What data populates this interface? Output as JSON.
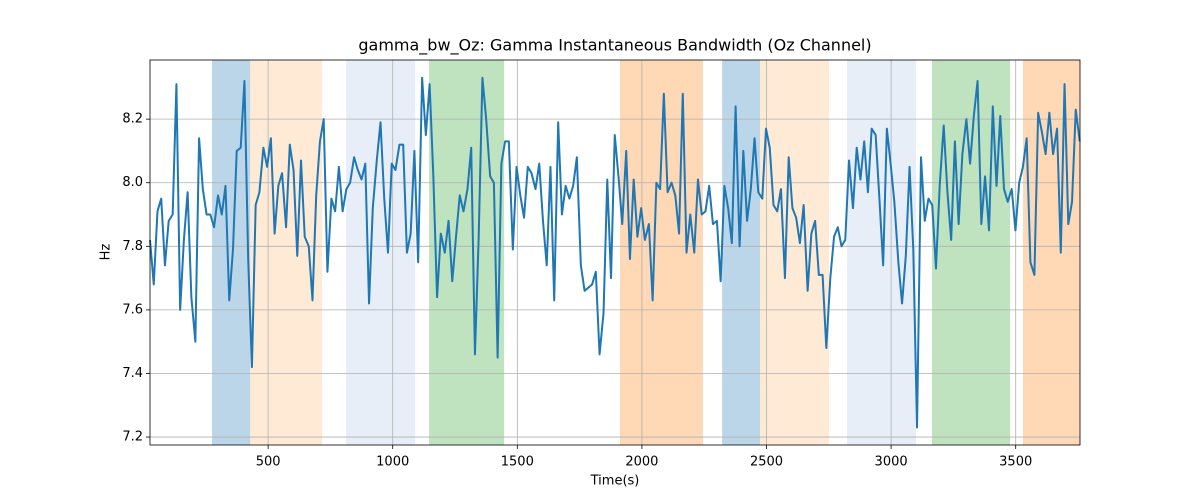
{
  "chart_data": {
    "type": "line",
    "title": "gamma_bw_Oz: Gamma Instantaneous Bandwidth (Oz Channel)",
    "xlabel": "Time(s)",
    "ylabel": "Hz",
    "xlim": [
      26,
      3758
    ],
    "ylim": [
      7.175,
      8.386
    ],
    "xticks": [
      500,
      1000,
      1500,
      2000,
      2500,
      3000,
      3500
    ],
    "yticks": [
      7.2,
      7.4,
      7.6,
      7.8,
      {
        "value": 8,
        "label": "8.0"
      },
      8.2
    ],
    "grid": true,
    "spans": [
      {
        "start": 275,
        "end": 428,
        "color": "#1f77b4",
        "opacity": 0.3
      },
      {
        "start": 428,
        "end": 717,
        "color": "#ffbb78",
        "opacity": 0.3
      },
      {
        "start": 813,
        "end": 1090,
        "color": "#aec7e8",
        "opacity": 0.3
      },
      {
        "start": 1146,
        "end": 1447,
        "color": "#2ca02c",
        "opacity": 0.3
      },
      {
        "start": 1912,
        "end": 2245,
        "color": "#ff7f0e",
        "opacity": 0.3
      },
      {
        "start": 2322,
        "end": 2474,
        "color": "#1f77b4",
        "opacity": 0.3
      },
      {
        "start": 2474,
        "end": 2751,
        "color": "#ffbb78",
        "opacity": 0.3
      },
      {
        "start": 2823,
        "end": 3100,
        "color": "#aec7e8",
        "opacity": 0.3
      },
      {
        "start": 3164,
        "end": 3477,
        "color": "#2ca02c",
        "opacity": 0.3
      },
      {
        "start": 3529,
        "end": 3758,
        "color": "#ff7f0e",
        "opacity": 0.3
      }
    ],
    "x": [
      26,
      41,
      56,
      71,
      86,
      101,
      117,
      132,
      147,
      162,
      177,
      192,
      208,
      223,
      238,
      253,
      268,
      283,
      299,
      314,
      329,
      344,
      359,
      374,
      390,
      405,
      420,
      435,
      450,
      465,
      481,
      496,
      511,
      526,
      541,
      556,
      572,
      587,
      602,
      617,
      632,
      647,
      663,
      678,
      693,
      708,
      723,
      738,
      754,
      769,
      784,
      799,
      814,
      829,
      845,
      860,
      875,
      890,
      905,
      920,
      936,
      951,
      966,
      981,
      996,
      1011,
      1027,
      1042,
      1057,
      1072,
      1087,
      1102,
      1118,
      1133,
      1148,
      1163,
      1178,
      1193,
      1209,
      1224,
      1239,
      1254,
      1269,
      1284,
      1300,
      1315,
      1330,
      1345,
      1360,
      1375,
      1391,
      1406,
      1421,
      1436,
      1451,
      1466,
      1482,
      1497,
      1512,
      1527,
      1542,
      1557,
      1573,
      1588,
      1603,
      1618,
      1633,
      1648,
      1664,
      1679,
      1694,
      1709,
      1724,
      1739,
      1755,
      1770,
      1785,
      1800,
      1815,
      1830,
      1846,
      1861,
      1876,
      1891,
      1906,
      1921,
      1937,
      1952,
      1967,
      1982,
      1997,
      2012,
      2028,
      2043,
      2058,
      2073,
      2088,
      2103,
      2119,
      2134,
      2149,
      2164,
      2179,
      2194,
      2210,
      2225,
      2240,
      2255,
      2270,
      2285,
      2301,
      2316,
      2331,
      2346,
      2361,
      2376,
      2392,
      2407,
      2422,
      2437,
      2452,
      2467,
      2483,
      2498,
      2513,
      2528,
      2543,
      2558,
      2574,
      2589,
      2604,
      2619,
      2634,
      2649,
      2665,
      2680,
      2695,
      2710,
      2725,
      2740,
      2756,
      2771,
      2786,
      2801,
      2816,
      2831,
      2847,
      2862,
      2877,
      2892,
      2907,
      2922,
      2938,
      2953,
      2968,
      2983,
      2998,
      3013,
      3029,
      3044,
      3059,
      3074,
      3089,
      3104,
      3120,
      3135,
      3150,
      3165,
      3180,
      3195,
      3211,
      3226,
      3241,
      3256,
      3271,
      3286,
      3302,
      3317,
      3332,
      3347,
      3362,
      3377,
      3393,
      3408,
      3423,
      3438,
      3453,
      3468,
      3484,
      3499,
      3514,
      3529,
      3544,
      3559,
      3575,
      3590,
      3605,
      3620,
      3635,
      3650,
      3666,
      3681,
      3696,
      3711,
      3726,
      3741,
      3757
    ],
    "series": [
      {
        "color": "#1f77b4",
        "values": [
          7.82,
          7.68,
          7.91,
          7.95,
          7.74,
          7.88,
          7.9,
          8.31,
          7.6,
          7.82,
          7.97,
          7.64,
          7.5,
          8.14,
          7.98,
          7.9,
          7.9,
          7.86,
          7.96,
          7.9,
          7.99,
          7.63,
          7.79,
          8.1,
          8.11,
          8.32,
          7.76,
          7.42,
          7.93,
          7.97,
          8.11,
          8.05,
          8.14,
          7.84,
          7.99,
          8.03,
          7.86,
          8.12,
          8.04,
          7.77,
          8.07,
          7.83,
          7.8,
          7.63,
          7.96,
          8.13,
          8.2,
          7.72,
          7.95,
          7.91,
          8.05,
          7.91,
          7.98,
          8.0,
          8.08,
          8.04,
          8.01,
          8.06,
          7.62,
          7.92,
          8.07,
          8.19,
          7.95,
          7.78,
          8.06,
          8.04,
          8.12,
          8.12,
          7.78,
          7.84,
          8.1,
          7.75,
          8.33,
          8.15,
          8.31,
          8.02,
          7.64,
          7.84,
          7.78,
          7.88,
          7.69,
          7.83,
          7.96,
          7.91,
          7.98,
          8.11,
          7.46,
          7.83,
          8.33,
          8.2,
          8.02,
          8.0,
          7.45,
          8.06,
          8.13,
          8.13,
          7.79,
          8.05,
          7.96,
          7.89,
          8.05,
          8.03,
          7.98,
          8.06,
          7.88,
          7.74,
          8.05,
          7.63,
          8.19,
          7.9,
          7.99,
          7.95,
          7.99,
          8.08,
          7.74,
          7.66,
          7.67,
          7.68,
          7.72,
          7.46,
          7.59,
          8.01,
          7.7,
          8.15,
          8.02,
          7.87,
          8.1,
          7.76,
          8.01,
          7.83,
          7.92,
          7.82,
          7.87,
          7.63,
          8.0,
          7.98,
          8.28,
          7.97,
          8.0,
          7.96,
          7.84,
          8.28,
          7.78,
          7.9,
          7.78,
          8.01,
          7.9,
          7.91,
          7.99,
          7.87,
          7.88,
          7.69,
          7.99,
          7.92,
          7.81,
          8.24,
          7.8,
          8.1,
          7.88,
          7.98,
          8.14,
          7.97,
          7.95,
          8.17,
          8.11,
          7.93,
          7.91,
          7.98,
          7.7,
          8.08,
          7.92,
          7.89,
          7.81,
          7.93,
          7.66,
          7.84,
          7.88,
          7.71,
          7.71,
          7.48,
          7.7,
          7.83,
          7.86,
          7.8,
          7.82,
          8.07,
          7.92,
          8.11,
          8.01,
          8.13,
          7.97,
          8.17,
          8.15,
          7.95,
          7.74,
          8.17,
          8.06,
          7.94,
          7.75,
          7.62,
          7.77,
          8.05,
          7.79,
          7.23,
          8.08,
          7.88,
          7.95,
          7.93,
          7.73,
          7.99,
          8.18,
          7.97,
          7.82,
          8.13,
          7.87,
          8.09,
          8.2,
          8.06,
          8.21,
          8.32,
          7.87,
          8.02,
          7.85,
          8.24,
          7.99,
          8.21,
          7.98,
          7.94,
          7.98,
          7.85,
          8.0,
          8.05,
          8.14,
          7.75,
          7.71,
          8.22,
          8.16,
          8.09,
          8.22,
          8.09,
          8.17,
          7.78,
          8.31,
          7.87,
          7.94,
          8.23,
          8.13
        ]
      }
    ]
  }
}
